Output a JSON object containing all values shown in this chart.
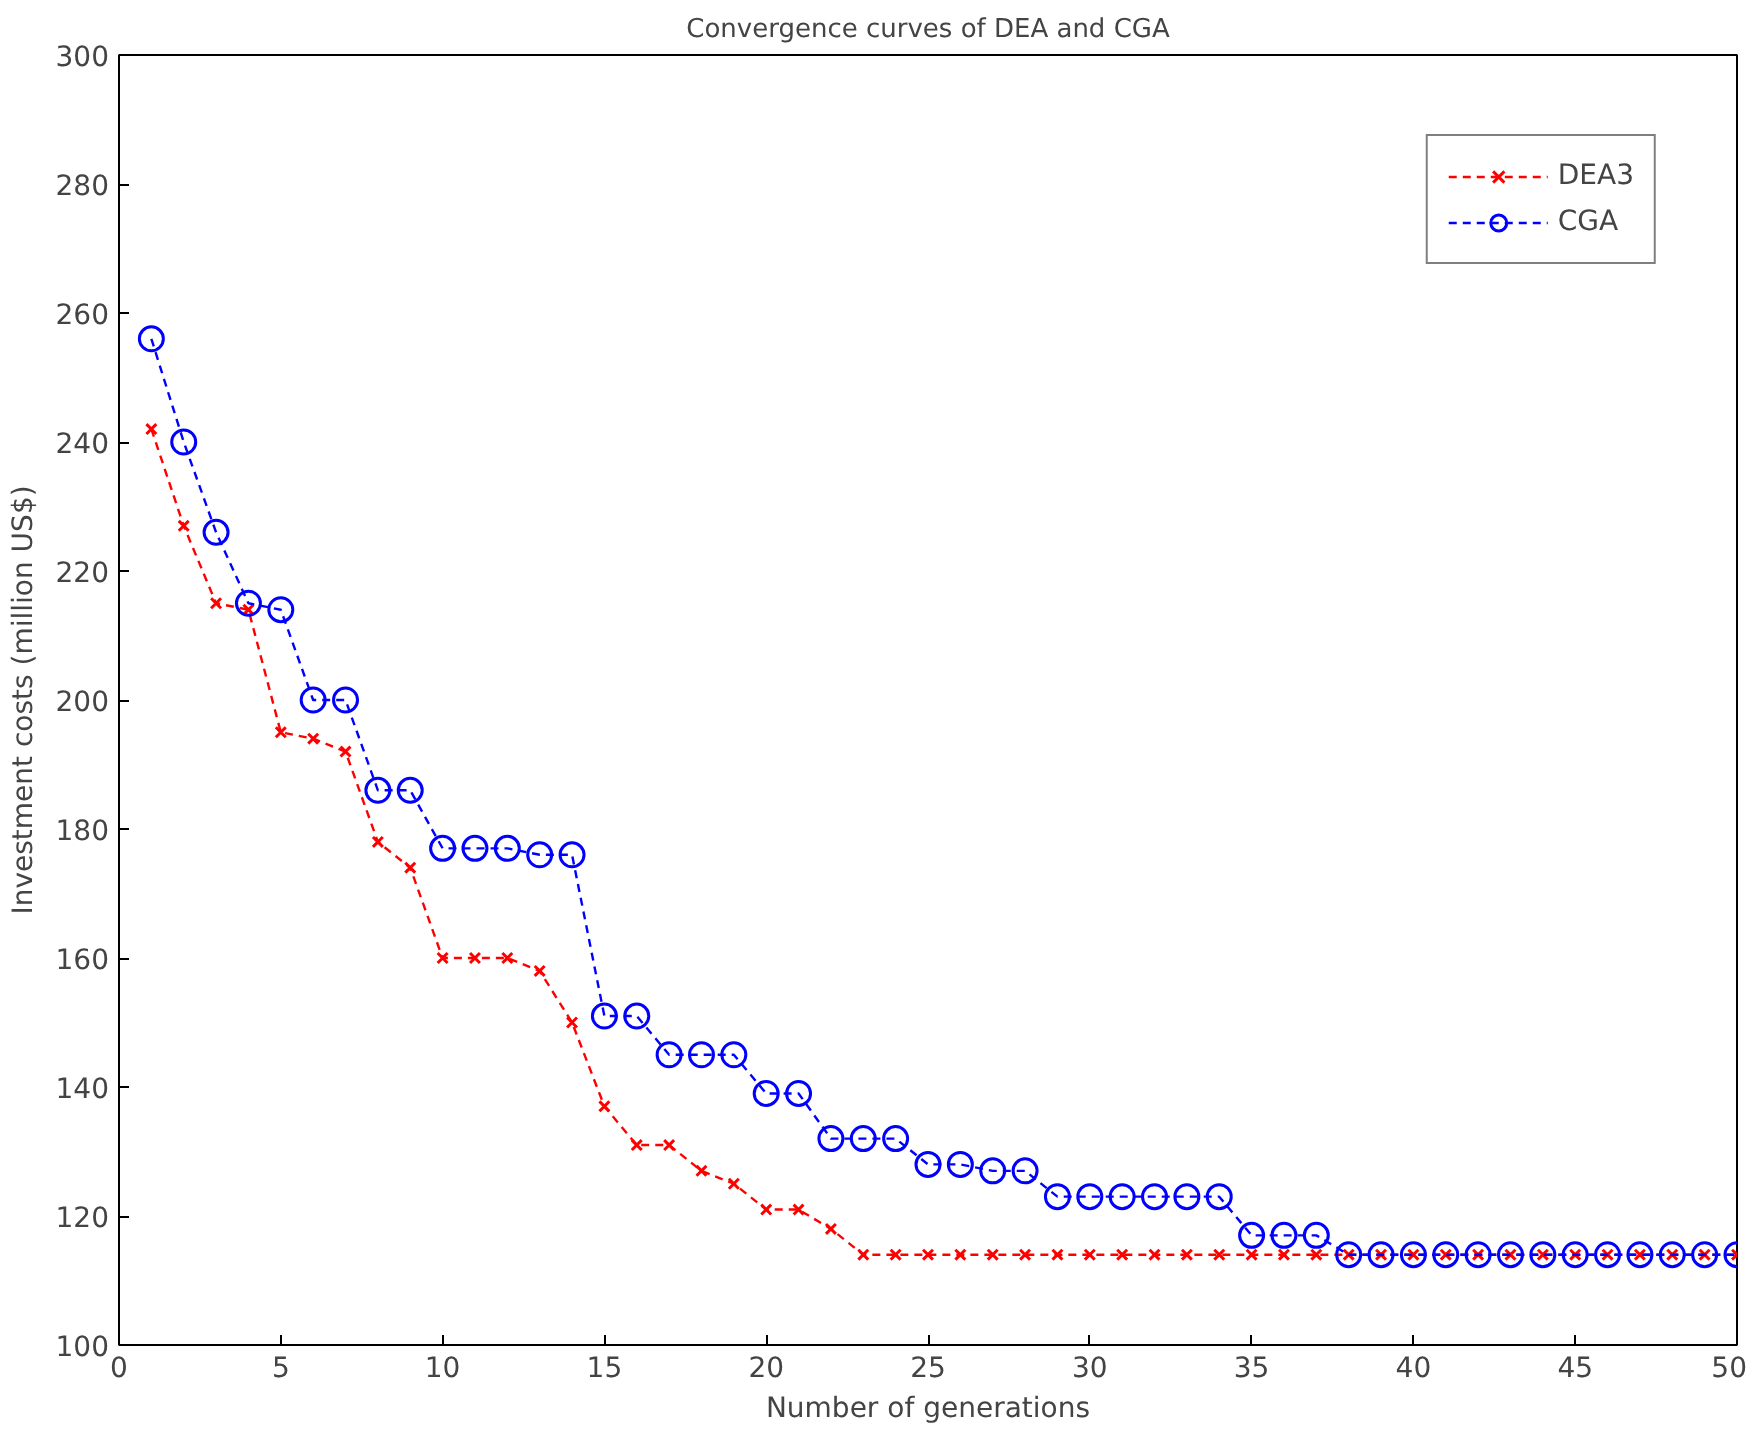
{
  "chart_data": {
    "type": "line",
    "title": "Convergence curves of DEA and CGA",
    "xlabel": "Number of generations",
    "ylabel": "Investment costs (million US$)",
    "x": [
      1,
      2,
      3,
      4,
      5,
      6,
      7,
      8,
      9,
      10,
      11,
      12,
      13,
      14,
      15,
      16,
      17,
      18,
      19,
      20,
      21,
      22,
      23,
      24,
      25,
      26,
      27,
      28,
      29,
      30,
      31,
      32,
      33,
      34,
      35,
      36,
      37,
      38,
      39,
      40,
      41,
      42,
      43,
      44,
      45,
      46,
      47,
      48,
      49,
      50
    ],
    "series": [
      {
        "name": "DEA3",
        "color": "#ff0000",
        "marker": "cross",
        "values": [
          242,
          227,
          215,
          214,
          195,
          194,
          192,
          178,
          174,
          160,
          160,
          160,
          158,
          150,
          137,
          131,
          131,
          127,
          125,
          121,
          121,
          118,
          114,
          114,
          114,
          114,
          114,
          114,
          114,
          114,
          114,
          114,
          114,
          114,
          114,
          114,
          114,
          114,
          114,
          114,
          114,
          114,
          114,
          114,
          114,
          114,
          114,
          114,
          114,
          114
        ]
      },
      {
        "name": "CGA",
        "color": "#0000ff",
        "marker": "circle",
        "values": [
          256,
          240,
          226,
          215,
          214,
          200,
          200,
          186,
          186,
          177,
          177,
          177,
          176,
          176,
          151,
          151,
          145,
          145,
          145,
          139,
          139,
          132,
          132,
          132,
          128,
          128,
          127,
          127,
          123,
          123,
          123,
          123,
          123,
          123,
          117,
          117,
          117,
          114,
          114,
          114,
          114,
          114,
          114,
          114,
          114,
          114,
          114,
          114,
          114,
          114
        ]
      }
    ],
    "xlim": [
      0,
      50
    ],
    "ylim": [
      100,
      300
    ],
    "xticks": [
      0,
      5,
      10,
      15,
      20,
      25,
      30,
      35,
      40,
      45,
      50
    ],
    "yticks": [
      100,
      120,
      140,
      160,
      180,
      200,
      220,
      240,
      260,
      280,
      300
    ],
    "grid": false,
    "legend": "top right",
    "line_style": "dashed"
  }
}
